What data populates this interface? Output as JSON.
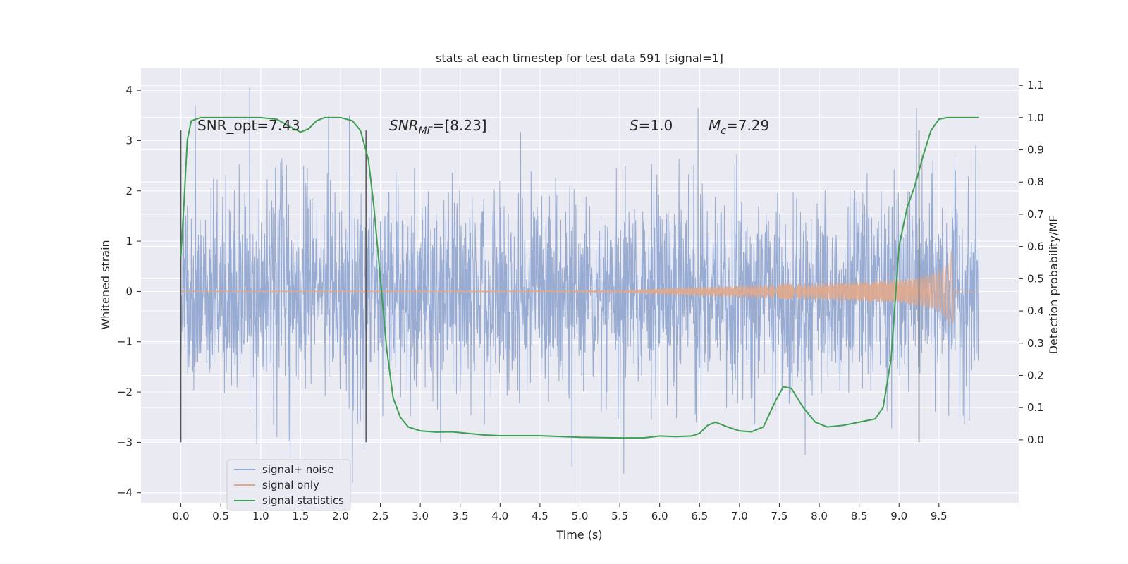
{
  "chart_data": {
    "type": "line",
    "title": "stats at each timestep for test data 591 [signal=1]",
    "xlabel": "Time (s)",
    "ylabel_left": "Whitened strain",
    "ylabel_right": "Detection probability/MF",
    "xlim": [
      -0.5,
      10.5
    ],
    "ylim_left": [
      -4.2,
      4.45
    ],
    "ylim_right": [
      -0.195,
      1.155
    ],
    "x_ticks": [
      0.0,
      0.5,
      1.0,
      1.5,
      2.0,
      2.5,
      3.0,
      3.5,
      4.0,
      4.5,
      5.0,
      5.5,
      6.0,
      6.5,
      7.0,
      7.5,
      8.0,
      8.5,
      9.0,
      9.5
    ],
    "x_tick_labels": [
      "0.0",
      "0.5",
      "1.0",
      "1.5",
      "2.0",
      "2.5",
      "3.0",
      "3.5",
      "4.0",
      "4.5",
      "5.0",
      "5.5",
      "6.0",
      "6.5",
      "7.0",
      "7.5",
      "8.0",
      "8.5",
      "9.0",
      "9.5"
    ],
    "y_left_ticks": [
      4,
      3,
      2,
      1,
      0,
      -1,
      -2,
      -3,
      -4
    ],
    "y_left_tick_labels": [
      "4",
      "3",
      "2",
      "1",
      "0",
      "−1",
      "−2",
      "−3",
      "−4"
    ],
    "y_right_ticks": [
      1.1,
      1.0,
      0.9,
      0.8,
      0.7,
      0.6,
      0.5,
      0.4,
      0.3,
      0.2,
      0.1,
      0.0
    ],
    "y_right_tick_labels": [
      "1.1",
      "1.0",
      "0.9",
      "0.8",
      "0.7",
      "0.6",
      "0.5",
      "0.4",
      "0.3",
      "0.2",
      "0.1",
      "0.0"
    ],
    "grid": true,
    "legend_position": "lower-left",
    "annotations": [
      "SNR_opt=7.43",
      "SNR_MF=[8.23]",
      "S=1.0",
      "M_c=7.29"
    ],
    "vertical_markers": [
      0.0,
      2.32,
      9.25
    ],
    "marker_range": [
      -3.0,
      3.2
    ],
    "series": [
      {
        "name": "signal+ noise",
        "color": "#92a8d1",
        "axis": "left",
        "x_range": [
          0.0,
          10.0
        ],
        "mean": 0.0,
        "std": 1.0,
        "extremes": [
          {
            "x": 0.86,
            "y": 4.05
          },
          {
            "x": 0.18,
            "y": 3.7
          },
          {
            "x": 1.85,
            "y": 3.5
          },
          {
            "x": 6.48,
            "y": 3.65
          },
          {
            "x": 9.22,
            "y": 3.65
          },
          {
            "x": 1.37,
            "y": -3.3
          },
          {
            "x": 2.15,
            "y": -3.8
          },
          {
            "x": 5.55,
            "y": -3.62
          },
          {
            "x": 4.9,
            "y": -3.5
          },
          {
            "x": 0.95,
            "y": -3.05
          }
        ]
      },
      {
        "name": "signal only",
        "color": "#e0a98c",
        "axis": "left",
        "envelope": [
          [
            0.0,
            0.005
          ],
          [
            5.0,
            0.01
          ],
          [
            5.5,
            0.02
          ],
          [
            6.0,
            0.06
          ],
          [
            7.0,
            0.12
          ],
          [
            8.0,
            0.17
          ],
          [
            8.5,
            0.2
          ],
          [
            9.0,
            0.24
          ],
          [
            9.3,
            0.3
          ],
          [
            9.5,
            0.4
          ],
          [
            9.62,
            0.6
          ],
          [
            9.67,
            0.92
          ],
          [
            9.69,
            0.05
          ],
          [
            10.0,
            0.01
          ]
        ]
      },
      {
        "name": "signal statistics",
        "color": "#3f9e52",
        "axis": "right",
        "points": [
          [
            0.0,
            0.57
          ],
          [
            0.04,
            0.74
          ],
          [
            0.08,
            0.93
          ],
          [
            0.13,
            0.99
          ],
          [
            0.25,
            1.0
          ],
          [
            0.6,
            1.0
          ],
          [
            1.0,
            1.0
          ],
          [
            1.2,
            0.995
          ],
          [
            1.38,
            0.97
          ],
          [
            1.5,
            0.955
          ],
          [
            1.6,
            0.965
          ],
          [
            1.7,
            0.99
          ],
          [
            1.8,
            1.0
          ],
          [
            2.0,
            1.0
          ],
          [
            2.15,
            0.99
          ],
          [
            2.25,
            0.96
          ],
          [
            2.35,
            0.87
          ],
          [
            2.42,
            0.72
          ],
          [
            2.5,
            0.5
          ],
          [
            2.58,
            0.28
          ],
          [
            2.66,
            0.13
          ],
          [
            2.75,
            0.07
          ],
          [
            2.85,
            0.04
          ],
          [
            3.0,
            0.028
          ],
          [
            3.2,
            0.024
          ],
          [
            3.4,
            0.025
          ],
          [
            3.6,
            0.02
          ],
          [
            3.8,
            0.015
          ],
          [
            4.0,
            0.013
          ],
          [
            4.5,
            0.013
          ],
          [
            5.0,
            0.008
          ],
          [
            5.5,
            0.006
          ],
          [
            5.8,
            0.006
          ],
          [
            6.0,
            0.012
          ],
          [
            6.2,
            0.01
          ],
          [
            6.4,
            0.012
          ],
          [
            6.5,
            0.02
          ],
          [
            6.6,
            0.045
          ],
          [
            6.7,
            0.055
          ],
          [
            6.85,
            0.04
          ],
          [
            7.0,
            0.028
          ],
          [
            7.15,
            0.025
          ],
          [
            7.3,
            0.04
          ],
          [
            7.45,
            0.12
          ],
          [
            7.55,
            0.165
          ],
          [
            7.65,
            0.16
          ],
          [
            7.8,
            0.1
          ],
          [
            7.95,
            0.055
          ],
          [
            8.1,
            0.04
          ],
          [
            8.3,
            0.045
          ],
          [
            8.5,
            0.055
          ],
          [
            8.7,
            0.065
          ],
          [
            8.8,
            0.1
          ],
          [
            8.9,
            0.25
          ],
          [
            9.0,
            0.6
          ],
          [
            9.1,
            0.72
          ],
          [
            9.2,
            0.79
          ],
          [
            9.3,
            0.88
          ],
          [
            9.4,
            0.96
          ],
          [
            9.5,
            0.995
          ],
          [
            9.6,
            1.0
          ],
          [
            10.0,
            1.0
          ]
        ]
      }
    ]
  }
}
